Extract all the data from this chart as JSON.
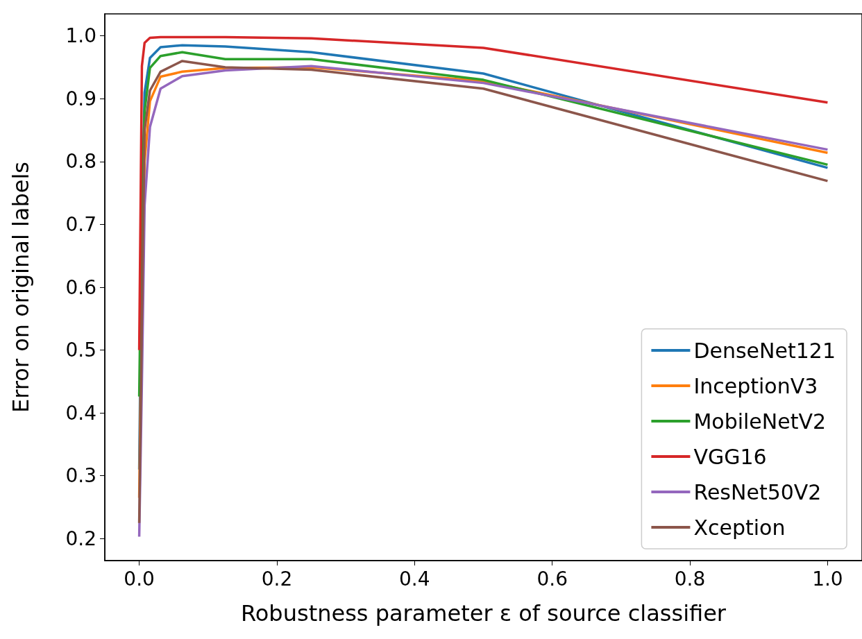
{
  "chart_data": {
    "type": "line",
    "xlabel": "Robustness parameter ε of source classifier",
    "ylabel": "Error on original labels",
    "x": [
      0,
      0.0039,
      0.0078,
      0.0156,
      0.031,
      0.0625,
      0.125,
      0.25,
      0.5,
      1.0
    ],
    "series": [
      {
        "name": "DenseNet121",
        "color": "#1f77b4",
        "values": [
          0.31,
          0.7,
          0.91,
          0.965,
          0.982,
          0.985,
          0.983,
          0.974,
          0.94,
          0.79
        ]
      },
      {
        "name": "InceptionV3",
        "color": "#ff7f0e",
        "values": [
          0.265,
          0.6,
          0.8,
          0.896,
          0.935,
          0.943,
          0.949,
          0.95,
          0.928,
          0.814
        ]
      },
      {
        "name": "MobileNetV2",
        "color": "#2ca02c",
        "values": [
          0.426,
          0.75,
          0.88,
          0.949,
          0.968,
          0.974,
          0.963,
          0.963,
          0.93,
          0.795
        ]
      },
      {
        "name": "VGG16",
        "color": "#d62728",
        "values": [
          0.5,
          0.952,
          0.989,
          0.997,
          0.998,
          0.998,
          0.998,
          0.996,
          0.981,
          0.894
        ]
      },
      {
        "name": "ResNet50V2",
        "color": "#9467bd",
        "values": [
          0.203,
          0.45,
          0.73,
          0.855,
          0.916,
          0.936,
          0.945,
          0.952,
          0.925,
          0.819
        ]
      },
      {
        "name": "Xception",
        "color": "#8c564b",
        "values": [
          0.225,
          0.55,
          0.85,
          0.913,
          0.943,
          0.96,
          0.95,
          0.946,
          0.916,
          0.769
        ]
      }
    ],
    "xlim": [
      -0.05,
      1.05
    ],
    "xticks": [
      {
        "value": 0,
        "label": "0.0"
      },
      0.2,
      0.4,
      0.6,
      0.8,
      {
        "value": 1,
        "label": "1.0"
      }
    ],
    "ylim": [
      0.165,
      1.035
    ],
    "yticks": [
      0.2,
      0.3,
      0.4,
      0.5,
      0.6,
      0.7,
      0.8,
      0.9,
      {
        "value": 1,
        "label": "1.0"
      }
    ],
    "grid": false,
    "legend": "bottom right",
    "marker": "none",
    "line_style": "solid"
  }
}
